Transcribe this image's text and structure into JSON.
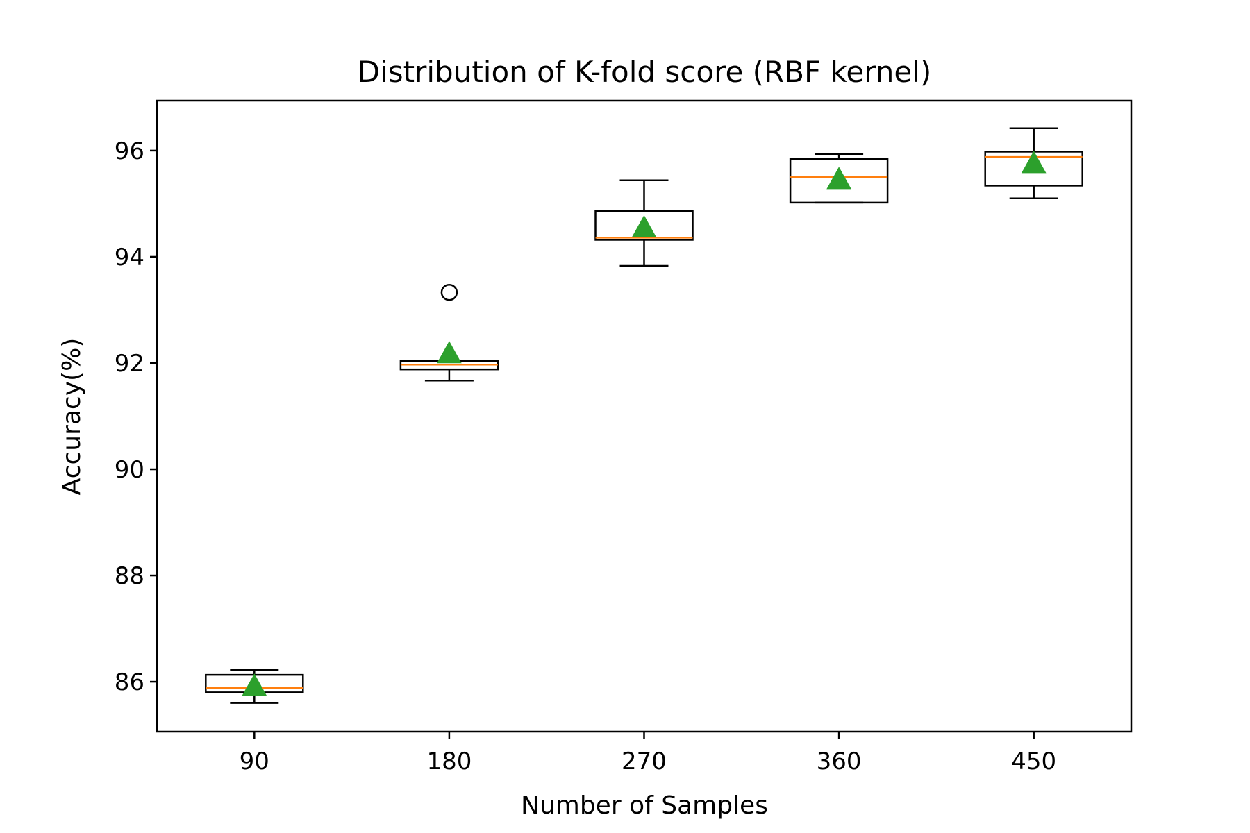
{
  "chart_data": {
    "type": "box",
    "title": "Distribution of K-fold score (RBF kernel)",
    "xlabel": "Number of Samples",
    "ylabel": "Accuracy(%)",
    "ylim": [
      85.06,
      96.94
    ],
    "yticks": [
      86,
      88,
      90,
      92,
      94,
      96
    ],
    "grid": false,
    "legend": "none",
    "categories": [
      "90",
      "180",
      "270",
      "360",
      "450"
    ],
    "boxes": [
      {
        "category": "90",
        "whisker_low": 85.6,
        "q1": 85.8,
        "median": 85.88,
        "q3": 86.13,
        "whisker_high": 86.22,
        "mean": 85.92,
        "outliers": []
      },
      {
        "category": "180",
        "whisker_low": 91.67,
        "q1": 91.88,
        "median": 91.97,
        "q3": 92.04,
        "whisker_high": 92.04,
        "mean": 92.18,
        "outliers": [
          93.33
        ]
      },
      {
        "category": "270",
        "whisker_low": 93.83,
        "q1": 94.32,
        "median": 94.36,
        "q3": 94.86,
        "whisker_high": 95.44,
        "mean": 94.55,
        "outliers": []
      },
      {
        "category": "360",
        "whisker_low": 95.02,
        "q1": 95.02,
        "median": 95.5,
        "q3": 95.84,
        "whisker_high": 95.93,
        "mean": 95.46,
        "outliers": []
      },
      {
        "category": "450",
        "whisker_low": 95.1,
        "q1": 95.34,
        "median": 95.88,
        "q3": 95.98,
        "whisker_high": 96.42,
        "mean": 95.76,
        "outliers": []
      }
    ],
    "colors": {
      "box": "#000000",
      "median": "#ff7f0e",
      "mean": "#2ca02c",
      "outlier": "#000000"
    }
  }
}
